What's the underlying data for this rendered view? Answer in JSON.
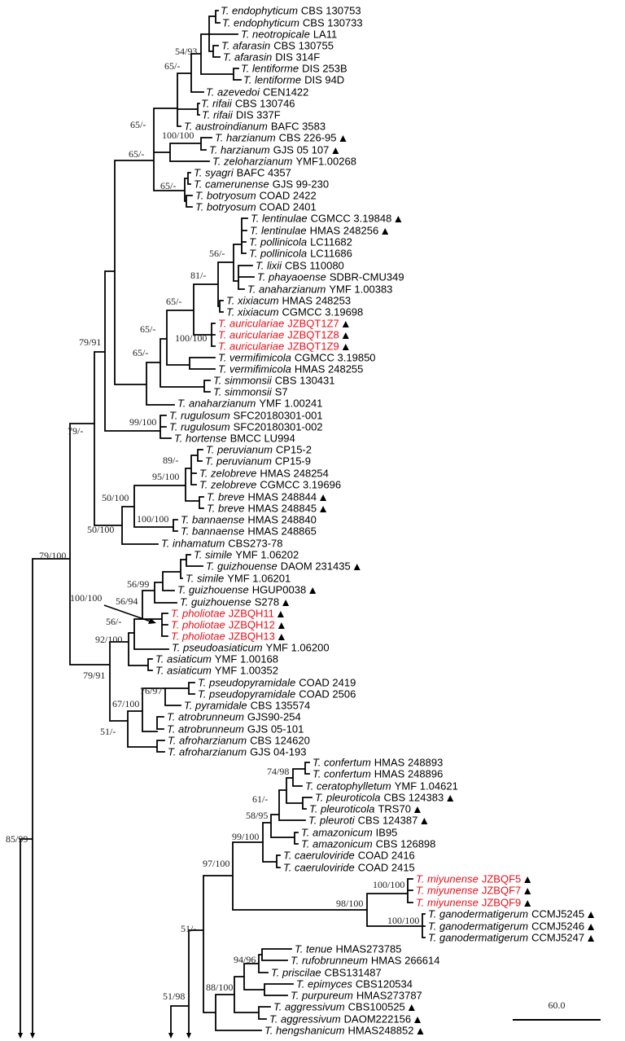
{
  "colors": {
    "branch": "#000000",
    "highlight": "#e8101a",
    "text": "#000000"
  },
  "leaves": [
    {
      "species": "T. endophyticum",
      "strain": "CBS 130753"
    },
    {
      "species": "T. endophyticum",
      "strain": "CBS 130733"
    },
    {
      "species": "T. neotropicale",
      "strain": "LA11"
    },
    {
      "species": "T. afarasin",
      "strain": "CBS 130755"
    },
    {
      "species": "T. afarasin",
      "strain": "DIS 314F"
    },
    {
      "species": "T. lentiforme",
      "strain": "DIS 253B"
    },
    {
      "species": "T. lentiforme",
      "strain": "DIS 94D"
    },
    {
      "species": "T. azevedoi",
      "strain": "CEN1422"
    },
    {
      "species": "T. rifaii",
      "strain": "CBS 130746"
    },
    {
      "species": "T. rifaii",
      "strain": "DIS 337F"
    },
    {
      "species": "T. austroindianum",
      "strain": "BAFC 3583"
    },
    {
      "species": "T. harzianum",
      "strain": "CBS 226-95",
      "marker": true
    },
    {
      "species": "T. harzianum",
      "strain": "GJS 05 107",
      "marker": true
    },
    {
      "species": "T. zeloharzianum",
      "strain": "YMF1.00268"
    },
    {
      "species": "T. syagri",
      "strain": "BAFC 4357"
    },
    {
      "species": "T. camerunense",
      "strain": "GJS 99-230"
    },
    {
      "species": "T. botryosum",
      "strain": "COAD 2422"
    },
    {
      "species": "T. botryosum",
      "strain": "COAD 2401"
    },
    {
      "species": "T. lentinulae",
      "strain": "CGMCC 3.19848",
      "marker": true
    },
    {
      "species": "T. lentinulae",
      "strain": "HMAS 248256",
      "marker": true
    },
    {
      "species": "T. pollinicola",
      "strain": "LC11682"
    },
    {
      "species": "T. pollinicola",
      "strain": "LC11686"
    },
    {
      "species": "T. lixii",
      "strain": "CBS 110080"
    },
    {
      "species": "T. phayaoense",
      "strain": "SDBR-CMU349"
    },
    {
      "species": "T. anaharzianum",
      "strain": "YMF 1.00383"
    },
    {
      "species": "T. xixiacum",
      "strain": "HMAS 248253"
    },
    {
      "species": "T. xixiacum",
      "strain": "CGMCC 3.19698"
    },
    {
      "species": "T. auriculariae",
      "strain": "JZBQT1Z7",
      "highlight": true,
      "marker": true
    },
    {
      "species": "T. auriculariae",
      "strain": "JZBQT1Z8",
      "highlight": true,
      "marker": true
    },
    {
      "species": "T. auriculariae",
      "strain": "JZBQT1Z9",
      "highlight": true,
      "marker": true
    },
    {
      "species": "T. vermifimicola",
      "strain": "CGMCC 3.19850"
    },
    {
      "species": "T. vermifimicola",
      "strain": "HMAS 248255"
    },
    {
      "species": "T. simmonsii",
      "strain": "CBS 130431"
    },
    {
      "species": "T. simmonsii",
      "strain": "S7"
    },
    {
      "species": "T. anaharzianum",
      "strain": "YMF 1.00241"
    },
    {
      "species": "T. rugulosum",
      "strain": "SFC20180301-001"
    },
    {
      "species": "T. rugulosum",
      "strain": "SFC20180301-002"
    },
    {
      "species": "T. hortense",
      "strain": "BMCC LU994"
    },
    {
      "species": "T. peruvianum",
      "strain": "CP15-2"
    },
    {
      "species": "T. peruvianum",
      "strain": "CP15-9"
    },
    {
      "species": "T. zelobreve",
      "strain": "HMAS 248254"
    },
    {
      "species": "T. zelobreve",
      "strain": "CGMCC 3.19696"
    },
    {
      "species": "T. breve",
      "strain": "HMAS 248844",
      "marker": true
    },
    {
      "species": "T. breve",
      "strain": "HMAS 248845",
      "marker": true
    },
    {
      "species": "T. bannaense",
      "strain": "HMAS 248840"
    },
    {
      "species": "T. bannaense",
      "strain": "HMAS 248865"
    },
    {
      "species": "T. inhamatum",
      "strain": "CBS273-78"
    },
    {
      "species": "T. simile",
      "strain": "YMF 1.06202"
    },
    {
      "species": "T. guizhouense",
      "strain": "DAOM 231435",
      "marker": true
    },
    {
      "species": "T. simile",
      "strain": "YMF 1.06201"
    },
    {
      "species": "T. guizhouense",
      "strain": "HGUP0038",
      "marker": true
    },
    {
      "species": "T. guizhouense",
      "strain": "S278",
      "marker": true
    },
    {
      "species": "T. pholiotae",
      "strain": "JZBQH11",
      "highlight": true,
      "marker": true
    },
    {
      "species": "T. pholiotae",
      "strain": "JZBQH12",
      "highlight": true,
      "marker": true
    },
    {
      "species": "T. pholiotae",
      "strain": "JZBQH13",
      "highlight": true,
      "marker": true
    },
    {
      "species": "T. pseudoasiaticum",
      "strain": "YMF 1.06200"
    },
    {
      "species": "T. asiaticum",
      "strain": "YMF 1.00168"
    },
    {
      "species": "T. asiaticum",
      "strain": "YMF 1.00352"
    },
    {
      "species": "T. pseudopyramidale",
      "strain": "COAD 2419"
    },
    {
      "species": "T. pseudopyramidale",
      "strain": "COAD 2506"
    },
    {
      "species": "T. pyramidale",
      "strain": "CBS 135574"
    },
    {
      "species": "T. atrobrunneum",
      "strain": "GJS90-254"
    },
    {
      "species": "T. atrobrunneum",
      "strain": "GJS 05-101"
    },
    {
      "species": "T. afroharzianum",
      "strain": "CBS 124620"
    },
    {
      "species": "T. afroharzianum",
      "strain": "GJS 04-193"
    },
    {
      "species": "T. confertum",
      "strain": "HMAS 248893"
    },
    {
      "species": "T. confertum",
      "strain": "HMAS 248896"
    },
    {
      "species": "T. ceratophylletum",
      "strain": "YMF 1.04621"
    },
    {
      "species": "T. pleuroticola",
      "strain": "CBS 124383",
      "marker": true
    },
    {
      "species": "T. pleuroticola",
      "strain": "TRS70",
      "marker": true
    },
    {
      "species": "T. pleuroti",
      "strain": "CBS 124387",
      "marker": true
    },
    {
      "species": "T. amazonicum",
      "strain": "IB95"
    },
    {
      "species": "T. amazonicum",
      "strain": "CBS 126898"
    },
    {
      "species": "T. caeruloviride",
      "strain": "COAD 2416"
    },
    {
      "species": "T. caeruloviride",
      "strain": "COAD 2415"
    },
    {
      "species": "T. miyunense",
      "strain": "JZBQF5",
      "highlight": true,
      "marker": true
    },
    {
      "species": "T. miyunense",
      "strain": "JZBQF7",
      "highlight": true,
      "marker": true
    },
    {
      "species": "T. miyunense",
      "strain": "JZBQF9",
      "highlight": true,
      "marker": true
    },
    {
      "species": "T. ganodermatigerum",
      "strain": "CCMJ5245",
      "marker": true
    },
    {
      "species": "T. ganodermatigerum",
      "strain": "CCMJ5246",
      "marker": true
    },
    {
      "species": "T. ganodermatigerum",
      "strain": "CCMJ5247",
      "marker": true
    },
    {
      "species": "T. tenue",
      "strain": "HMAS273785"
    },
    {
      "species": "T. rufobrunneum",
      "strain": "HMAS 266614"
    },
    {
      "species": "T. priscilae",
      "strain": "CBS131487"
    },
    {
      "species": "T. epimyces",
      "strain": "CBS120534"
    },
    {
      "species": "T. purpureum",
      "strain": "HMAS273787"
    },
    {
      "species": "T. aggressivum",
      "strain": "CBS100525",
      "marker": true
    },
    {
      "species": "T. aggressivum",
      "strain": "DAOM222156",
      "marker": true
    },
    {
      "species": "T. hengshanicum",
      "strain": "HMAS248852",
      "marker": true
    }
  ],
  "support_values": [
    "54/93",
    "65/-",
    "65/-",
    "65/-",
    "100/100",
    "65/-",
    "56/-",
    "81/-",
    "65/-",
    "65/-",
    "100/100",
    "65/-",
    "79/91",
    "99/100",
    "79/-",
    "89/-",
    "95/100",
    "50/100",
    "100/100",
    "50/100",
    "79/100",
    "56/99",
    "100/100",
    "56/94",
    "56/-",
    "92/100",
    "79/91",
    "76/97",
    "67/100",
    "51/-",
    "74/98",
    "61/-",
    "58/95",
    "99/100",
    "97/100",
    "100/100",
    "98/100",
    "100/100",
    "51/-",
    "94/96",
    "88/100",
    "51/98",
    "85/99"
  ],
  "scale_bar": {
    "label": "60.0"
  }
}
